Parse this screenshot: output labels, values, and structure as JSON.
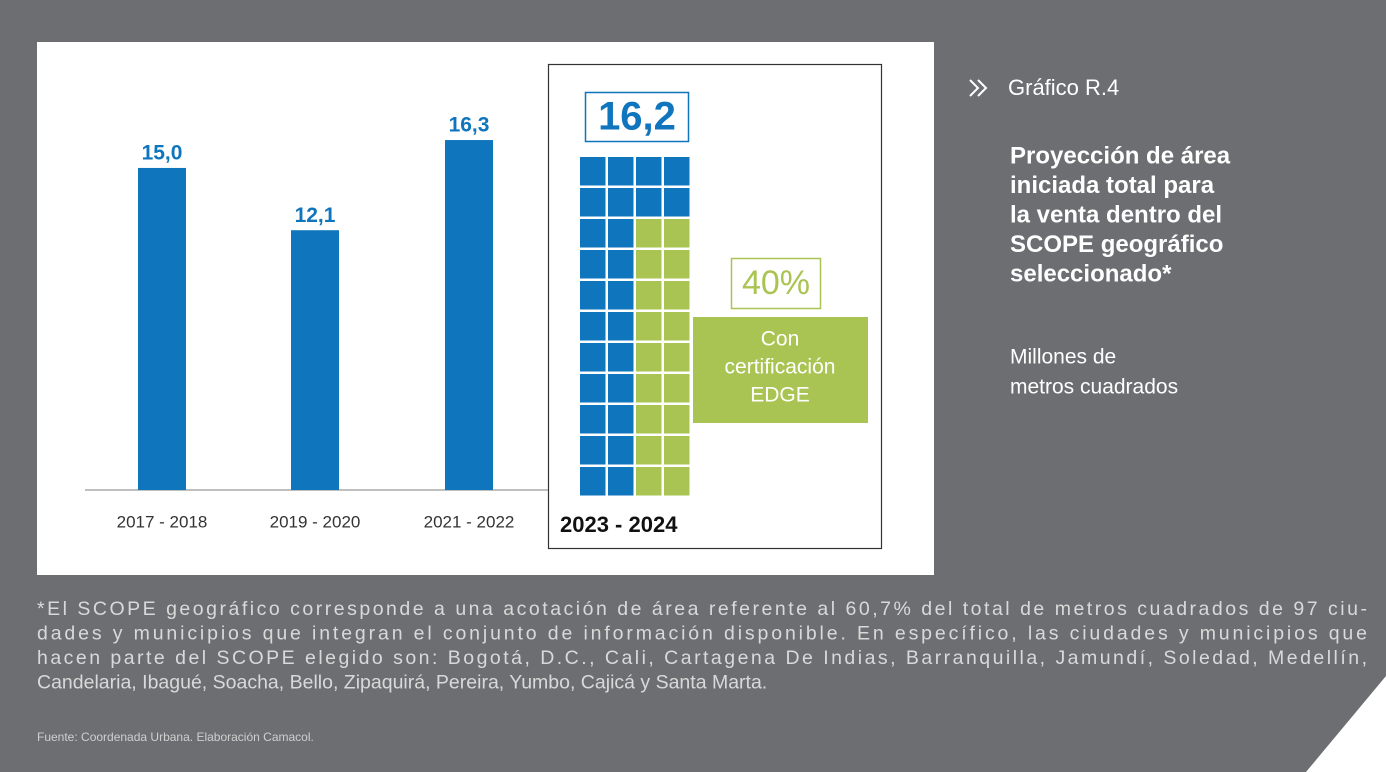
{
  "chart_data": {
    "type": "bar",
    "categories": [
      "2017 - 2018",
      "2019 - 2020",
      "2021 - 2022"
    ],
    "values": [
      15.0,
      12.1,
      16.3
    ],
    "value_labels": [
      "15,0",
      "12,1",
      "16,3"
    ],
    "color": "#0f75bc",
    "ylim": [
      0,
      18
    ],
    "projection": {
      "category": "2023 - 2024",
      "value": 16.2,
      "value_label": "16,2",
      "share": 40,
      "share_label": "40%",
      "share_color": "#a9c452",
      "share_text": [
        "Con",
        "certificación",
        "EDGE"
      ]
    },
    "heading": "Gráfico R.4",
    "title": [
      "Proyección de área",
      "iniciada total para",
      "la venta dentro del",
      "SCOPE geográfico",
      "seleccionado*"
    ],
    "subtitle": [
      "Millones de",
      "metros cuadrados"
    ],
    "footnote": [
      "*El SCOPE geográfico corresponde a una acotación de área referente al 60,7% del total de metros cuadrados de 97 ciu-",
      "dades y municipios que integran el conjunto de información disponible. En específico, las ciudades y municipios que",
      "hacen parte del SCOPE elegido son: Bogotá, D.C., Cali, Cartagena De Indias, Barranquilla, Jamundí, Soledad, Medellín,",
      "Candelaria, Ibagué, Soacha, Bello, Zipaquirá, Pereira, Yumbo, Cajicá y Santa Marta."
    ],
    "source": "Fuente: Coordenada Urbana. Elaboración Camacol."
  }
}
